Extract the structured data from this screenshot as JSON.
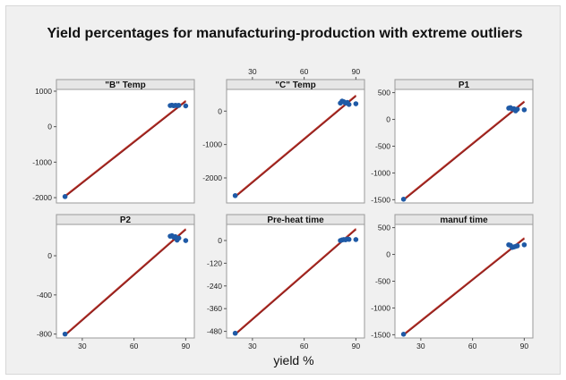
{
  "chart_data": {
    "type": "scatter",
    "title": "Yield  percentages for manufacturing-production with extreme outliers",
    "xlabel": "yield %",
    "xlim": [
      15,
      95
    ],
    "x_ticks": [
      "30",
      "60",
      "90"
    ],
    "colors": {
      "points": "#1f5aa6",
      "fit_line": "#c0392b",
      "background": "#f0f0f0",
      "panel": "#ffffff"
    },
    "panels": [
      {
        "name": "\"B\" Temp",
        "ylim": [
          -2150,
          1050
        ],
        "y_ticks": [
          "1000",
          "0",
          "-1000",
          "-2000"
        ],
        "y_tick_values": [
          1000,
          0,
          -1000,
          -2000
        ],
        "points": [
          [
            20,
            -1970
          ],
          [
            81,
            595
          ],
          [
            82,
            605
          ],
          [
            83,
            590
          ],
          [
            84,
            600
          ],
          [
            85,
            595
          ],
          [
            86,
            600
          ],
          [
            90,
            585
          ]
        ],
        "fit": [
          [
            20,
            -1960
          ],
          [
            90,
            720
          ]
        ]
      },
      {
        "name": "\"C\" Temp",
        "ylim": [
          -2750,
          650
        ],
        "y_ticks": [
          "0",
          "-1000",
          "-2000"
        ],
        "y_tick_values": [
          0,
          -1000,
          -2000
        ],
        "points": [
          [
            20,
            -2530
          ],
          [
            81,
            240
          ],
          [
            82,
            300
          ],
          [
            83,
            280
          ],
          [
            84,
            240
          ],
          [
            85,
            260
          ],
          [
            86,
            200
          ],
          [
            90,
            220
          ]
        ],
        "fit": [
          [
            20,
            -2560
          ],
          [
            90,
            460
          ]
        ]
      },
      {
        "name": "P1",
        "ylim": [
          -1560,
          560
        ],
        "y_ticks": [
          "500",
          "0",
          "-500",
          "-1000",
          "-1500"
        ],
        "y_tick_values": [
          500,
          0,
          -500,
          -1000,
          -1500
        ],
        "points": [
          [
            20,
            -1490
          ],
          [
            81,
            210
          ],
          [
            82,
            220
          ],
          [
            83,
            195
          ],
          [
            84,
            200
          ],
          [
            85,
            160
          ],
          [
            86,
            190
          ],
          [
            90,
            180
          ]
        ],
        "fit": [
          [
            20,
            -1500
          ],
          [
            90,
            330
          ]
        ]
      },
      {
        "name": "P2",
        "ylim": [
          -840,
          320
        ],
        "y_ticks": [
          "0",
          "-400",
          "-800"
        ],
        "y_tick_values": [
          0,
          -400,
          -800
        ],
        "points": [
          [
            20,
            -800
          ],
          [
            81,
            200
          ],
          [
            82,
            205
          ],
          [
            83,
            190
          ],
          [
            84,
            195
          ],
          [
            85,
            160
          ],
          [
            86,
            180
          ],
          [
            90,
            155
          ]
        ],
        "fit": [
          [
            20,
            -810
          ],
          [
            90,
            270
          ]
        ]
      },
      {
        "name": "Pre-heat time",
        "ylim": [
          -515,
          85
        ],
        "y_ticks": [
          "0",
          "-120",
          "-240",
          "-360",
          "-480"
        ],
        "y_tick_values": [
          0,
          -120,
          -240,
          -360,
          -480
        ],
        "points": [
          [
            20,
            -490
          ],
          [
            81,
            0
          ],
          [
            82,
            3
          ],
          [
            83,
            5
          ],
          [
            84,
            4
          ],
          [
            85,
            8
          ],
          [
            86,
            6
          ],
          [
            90,
            5
          ]
        ],
        "fit": [
          [
            20,
            -495
          ],
          [
            90,
            60
          ]
        ]
      },
      {
        "name": "manuf time",
        "ylim": [
          -1560,
          560
        ],
        "y_ticks": [
          "500",
          "0",
          "-500",
          "-1000",
          "-1500"
        ],
        "y_tick_values": [
          500,
          0,
          -500,
          -1000,
          -1500
        ],
        "points": [
          [
            20,
            -1490
          ],
          [
            81,
            180
          ],
          [
            82,
            170
          ],
          [
            83,
            130
          ],
          [
            84,
            140
          ],
          [
            85,
            150
          ],
          [
            86,
            160
          ],
          [
            90,
            180
          ]
        ],
        "fit": [
          [
            20,
            -1500
          ],
          [
            90,
            300
          ]
        ]
      }
    ]
  }
}
